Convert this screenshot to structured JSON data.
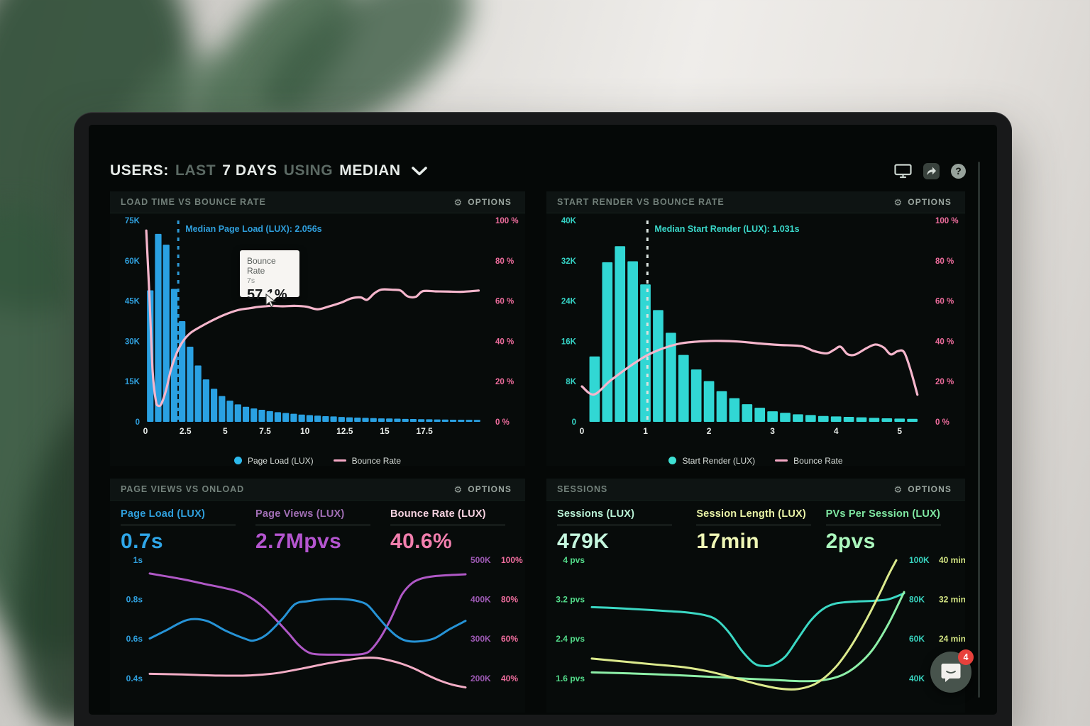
{
  "header": {
    "users": "USERS:",
    "last": "LAST",
    "days": "7 DAYS",
    "using": "USING",
    "median": "MEDIAN",
    "help_glyph": "?"
  },
  "chat": {
    "badge": "4"
  },
  "chart_data": [
    {
      "id": "load-time-vs-bounce-rate",
      "type": "bar+line",
      "title": "LOAD TIME VS BOUNCE RATE",
      "options_label": "OPTIONS",
      "annotation": "Median Page Load (LUX): 2.056s",
      "median_x": 2.056,
      "median_color": "#2e9ad6",
      "annotation_color": "#2f9fdc",
      "x_range": [
        0,
        21.5
      ],
      "x_tick_values": [
        0,
        2.5,
        5,
        7.5,
        10,
        12.5,
        15,
        17.5
      ],
      "x_ticks": [
        "0",
        "2.5",
        "5",
        "7.5",
        "10",
        "12.5",
        "15",
        "17.5"
      ],
      "left_axis": {
        "color": "#2f9fdc",
        "ticks": [
          "75K",
          "60K",
          "45K",
          "30K",
          "15K",
          "0"
        ]
      },
      "right_axis": {
        "color": "#ee6d9d",
        "ticks": [
          "100 %",
          "80 %",
          "60 %",
          "40 %",
          "20 %",
          "0 %"
        ]
      },
      "bars": {
        "name": "Page Load (LUX)",
        "color": "#2aa1e2",
        "range": [
          0,
          75
        ],
        "x_start": 0.3,
        "x_step": 0.5,
        "values": [
          49,
          70,
          66,
          49.5,
          37.5,
          28,
          21,
          15.8,
          12.3,
          9.6,
          7.9,
          6.5,
          5.6,
          5,
          4.5,
          4,
          3.6,
          3.3,
          3,
          2.7,
          2.5,
          2.3,
          2.1,
          2,
          1.8,
          1.7,
          1.6,
          1.5,
          1.4,
          1.3,
          1.25,
          1.2,
          1.1,
          1.05,
          1,
          0.95,
          0.9,
          0.85,
          0.8,
          0.78,
          0.75,
          0.72
        ]
      },
      "line": {
        "name": "Bounce Rate",
        "color": "#f5b6cc",
        "range": [
          0,
          100
        ],
        "points": [
          [
            0.05,
            95
          ],
          [
            0.25,
            62
          ],
          [
            0.45,
            25
          ],
          [
            0.65,
            10.5
          ],
          [
            0.8,
            8
          ],
          [
            1,
            9
          ],
          [
            1.3,
            16
          ],
          [
            1.6,
            26
          ],
          [
            1.95,
            34
          ],
          [
            2.35,
            40
          ],
          [
            2.8,
            44
          ],
          [
            3.4,
            47
          ],
          [
            4.1,
            50
          ],
          [
            4.9,
            53
          ],
          [
            5.8,
            55.5
          ],
          [
            6.6,
            56.5
          ],
          [
            7.1,
            57.1
          ],
          [
            7.9,
            57.6
          ],
          [
            8.6,
            57.4
          ],
          [
            9.4,
            57.6
          ],
          [
            10.1,
            57.2
          ],
          [
            10.8,
            55.9
          ],
          [
            11.5,
            57.3
          ],
          [
            12.3,
            59.3
          ],
          [
            12.9,
            61.3
          ],
          [
            13.5,
            61.8
          ],
          [
            13.9,
            60.6
          ],
          [
            14.35,
            63.8
          ],
          [
            14.8,
            65.7
          ],
          [
            15.5,
            65.6
          ],
          [
            16,
            65.2
          ],
          [
            16.45,
            62.3
          ],
          [
            16.95,
            62.1
          ],
          [
            17.4,
            64.9
          ],
          [
            18.2,
            64.8
          ],
          [
            19,
            64.7
          ],
          [
            19.9,
            64.6
          ],
          [
            20.9,
            65.2
          ]
        ]
      },
      "legend": [
        {
          "swatch": "dot",
          "color": "#2cb9ec",
          "label": "Page Load (LUX)"
        },
        {
          "swatch": "line",
          "color": "#f5a8c5",
          "label": "Bounce Rate"
        }
      ],
      "tooltip": {
        "title": "Bounce Rate",
        "subtitle": "7s",
        "value": "57.1%"
      }
    },
    {
      "id": "start-render-vs-bounce-rate",
      "type": "bar+line",
      "title": "START RENDER VS BOUNCE RATE",
      "options_label": "OPTIONS",
      "annotation": "Median Start Render (LUX): 1.031s",
      "median_x": 1.031,
      "median_color": "#d9e3df",
      "annotation_color": "#3ad9cb",
      "x_range": [
        0,
        5.45
      ],
      "x_tick_values": [
        0,
        1,
        2,
        3,
        4,
        5
      ],
      "x_ticks": [
        "0",
        "1",
        "2",
        "3",
        "4",
        "5"
      ],
      "left_axis": {
        "color": "#35d3c5",
        "ticks": [
          "40K",
          "32K",
          "24K",
          "16K",
          "8K",
          "0"
        ]
      },
      "right_axis": {
        "color": "#ee6d9d",
        "ticks": [
          "100 %",
          "80 %",
          "60 %",
          "40 %",
          "20 %",
          "0 %"
        ]
      },
      "bars": {
        "name": "Start Render (LUX)",
        "color": "#31d7d4",
        "range": [
          0,
          40
        ],
        "x_start": 0.2,
        "x_step": 0.2,
        "values": [
          13,
          31.7,
          34.9,
          31.9,
          27.3,
          22.2,
          17.7,
          13.3,
          10.4,
          8.1,
          6.1,
          4.7,
          3.5,
          2.8,
          2.1,
          1.8,
          1.5,
          1.35,
          1.17,
          1.07,
          0.98,
          0.89,
          0.79,
          0.7,
          0.65,
          0.6
        ]
      },
      "line": {
        "name": "Bounce Rate",
        "color": "#f5b6cc",
        "range": [
          0,
          100
        ],
        "points": [
          [
            0,
            17.6
          ],
          [
            0.19,
            13.6
          ],
          [
            0.45,
            20.5
          ],
          [
            0.82,
            29
          ],
          [
            1.12,
            34.5
          ],
          [
            1.5,
            38.6
          ],
          [
            1.8,
            39.8
          ],
          [
            2.1,
            40.2
          ],
          [
            2.45,
            39.9
          ],
          [
            2.8,
            38.9
          ],
          [
            3.1,
            38.2
          ],
          [
            3.45,
            37.6
          ],
          [
            3.65,
            35.2
          ],
          [
            3.85,
            34
          ],
          [
            3.97,
            35.8
          ],
          [
            4.07,
            37.3
          ],
          [
            4.18,
            33.6
          ],
          [
            4.3,
            33.4
          ],
          [
            4.48,
            36.6
          ],
          [
            4.62,
            38.4
          ],
          [
            4.75,
            36.9
          ],
          [
            4.86,
            33.5
          ],
          [
            4.97,
            35.1
          ],
          [
            5.07,
            34.6
          ],
          [
            5.17,
            26
          ],
          [
            5.28,
            13.5
          ]
        ]
      },
      "legend": [
        {
          "swatch": "dot",
          "color": "#3ee0d4",
          "label": "Start Render (LUX)"
        },
        {
          "swatch": "line",
          "color": "#f5a8c5",
          "label": "Bounce Rate"
        }
      ]
    },
    {
      "id": "page-views-vs-onload",
      "type": "multi-line",
      "title": "PAGE VIEWS VS ONLOAD",
      "options_label": "OPTIONS",
      "metrics": [
        {
          "label": "Page Load (LUX)",
          "value": "0.7s",
          "label_color": "#2f9fdc",
          "value_color": "#2fa6e8"
        },
        {
          "label": "Page Views (LUX)",
          "value": "2.7Mpvs",
          "label_color": "#a06eb4",
          "value_color": "#b455cf"
        },
        {
          "label": "Bounce Rate (LUX)",
          "value": "40.6%",
          "label_color": "#f6d2e0",
          "value_color": "#f27fae"
        }
      ],
      "row_fractions": [
        0.03,
        0.32,
        0.61,
        0.9
      ],
      "left_ticks": {
        "color": "#2f9fdc",
        "labels": [
          "1s",
          "0.8s",
          "0.6s",
          "0.4s"
        ]
      },
      "right_tick_cols": [
        {
          "color": "#9c59b3",
          "labels": [
            "500K",
            "400K",
            "300K",
            "200K"
          ]
        },
        {
          "color": "#ee6d9d",
          "labels": [
            "100%",
            "80%",
            "60%",
            "40%"
          ]
        }
      ],
      "series": [
        {
          "name": "Bounce Rate (LUX)",
          "color": "#f3adc6",
          "range": [
            33,
            102
          ],
          "points": [
            [
              0,
              42.2
            ],
            [
              0.1,
              41.9
            ],
            [
              0.22,
              41.3
            ],
            [
              0.32,
              41.4
            ],
            [
              0.4,
              42.5
            ],
            [
              0.48,
              44.8
            ],
            [
              0.56,
              47.4
            ],
            [
              0.63,
              49.3
            ],
            [
              0.68,
              50.3
            ],
            [
              0.72,
              50.2
            ],
            [
              0.76,
              49
            ],
            [
              0.8,
              47.2
            ],
            [
              0.84,
              44.7
            ],
            [
              0.88,
              41.5
            ],
            [
              0.92,
              38.7
            ],
            [
              0.96,
              36.6
            ],
            [
              1,
              35.3
            ]
          ]
        },
        {
          "name": "Page Views (LUX)",
          "color": "#af58c6",
          "range": [
            164,
            511
          ],
          "points": [
            [
              0,
              466
            ],
            [
              0.1,
              452
            ],
            [
              0.17,
              440
            ],
            [
              0.23,
              430
            ],
            [
              0.28,
              420
            ],
            [
              0.32,
              404
            ],
            [
              0.36,
              380
            ],
            [
              0.4,
              348
            ],
            [
              0.44,
              313
            ],
            [
              0.47,
              285
            ],
            [
              0.5,
              266
            ],
            [
              0.53,
              260
            ],
            [
              0.6,
              259
            ],
            [
              0.65,
              259
            ],
            [
              0.68,
              262
            ],
            [
              0.7,
              271
            ],
            [
              0.73,
              302
            ],
            [
              0.76,
              345
            ],
            [
              0.78,
              380
            ],
            [
              0.8,
              414
            ],
            [
              0.83,
              441
            ],
            [
              0.86,
              453
            ],
            [
              0.9,
              459
            ],
            [
              0.95,
              462
            ],
            [
              1,
              464
            ]
          ]
        },
        {
          "name": "Page Load (LUX)",
          "color": "#2693d6",
          "range": [
            0.328,
            1.021
          ],
          "points": [
            [
              0,
              0.6
            ],
            [
              0.05,
              0.64
            ],
            [
              0.12,
              0.695
            ],
            [
              0.18,
              0.69
            ],
            [
              0.24,
              0.64
            ],
            [
              0.3,
              0.6
            ],
            [
              0.33,
              0.59
            ],
            [
              0.37,
              0.62
            ],
            [
              0.42,
              0.7
            ],
            [
              0.46,
              0.775
            ],
            [
              0.5,
              0.79
            ],
            [
              0.55,
              0.8
            ],
            [
              0.62,
              0.8
            ],
            [
              0.66,
              0.79
            ],
            [
              0.69,
              0.77
            ],
            [
              0.72,
              0.715
            ],
            [
              0.75,
              0.66
            ],
            [
              0.78,
              0.615
            ],
            [
              0.81,
              0.59
            ],
            [
              0.85,
              0.585
            ],
            [
              0.9,
              0.6
            ],
            [
              0.95,
              0.648
            ],
            [
              1,
              0.69
            ]
          ]
        }
      ]
    },
    {
      "id": "sessions",
      "type": "multi-line",
      "title": "SESSIONS",
      "options_label": "OPTIONS",
      "metrics": [
        {
          "label": "Sessions (LUX)",
          "value": "479K",
          "label_color": "#b9f2d6",
          "value_color": "#c4f6de"
        },
        {
          "label": "Session Length (LUX)",
          "value": "17min",
          "label_color": "#e9f3a7",
          "value_color": "#eff7b6"
        },
        {
          "label": "PVs Per Session (LUX)",
          "value": "2pvs",
          "label_color": "#7fe8a2",
          "value_color": "#abf7bd"
        }
      ],
      "row_fractions": [
        0.03,
        0.32,
        0.61,
        0.9
      ],
      "left_ticks": {
        "color": "#54dd8b",
        "labels": [
          "4 pvs",
          "3.2 pvs",
          "2.4 pvs",
          "1.6 pvs"
        ]
      },
      "right_tick_cols": [
        {
          "color": "#38d3be",
          "labels": [
            "100K",
            "80K",
            "60K",
            "40K"
          ]
        },
        {
          "color": "#d3e583",
          "labels": [
            "40 min",
            "32 min",
            "24 min"
          ]
        }
      ],
      "series": [
        {
          "name": "Sessions (LUX)",
          "color": "#3bd8c4",
          "range": [
            33,
            102
          ],
          "points": [
            [
              0,
              76
            ],
            [
              0.08,
              75.5
            ],
            [
              0.16,
              74.8
            ],
            [
              0.24,
              74
            ],
            [
              0.3,
              73.4
            ],
            [
              0.36,
              72
            ],
            [
              0.4,
              69.5
            ],
            [
              0.44,
              63
            ],
            [
              0.48,
              54
            ],
            [
              0.52,
              47.5
            ],
            [
              0.55,
              46.2
            ],
            [
              0.58,
              46.8
            ],
            [
              0.62,
              51
            ],
            [
              0.66,
              60
            ],
            [
              0.7,
              69
            ],
            [
              0.74,
              75
            ],
            [
              0.78,
              77.8
            ],
            [
              0.84,
              78.8
            ],
            [
              0.9,
              79.2
            ],
            [
              0.95,
              80
            ],
            [
              1,
              83
            ]
          ]
        },
        {
          "name": "PVs Per Session (LUX)",
          "color": "#8df0a8",
          "range": [
            1.31,
            4.09
          ],
          "points": [
            [
              0,
              1.71
            ],
            [
              0.12,
              1.69
            ],
            [
              0.25,
              1.66
            ],
            [
              0.38,
              1.62
            ],
            [
              0.5,
              1.58
            ],
            [
              0.6,
              1.55
            ],
            [
              0.68,
              1.53
            ],
            [
              0.74,
              1.55
            ],
            [
              0.8,
              1.65
            ],
            [
              0.85,
              1.85
            ],
            [
              0.9,
              2.18
            ],
            [
              0.95,
              2.7
            ],
            [
              1,
              3.35
            ]
          ]
        },
        {
          "name": "Session Length (LUX)",
          "color": "#dcea8d",
          "range": [
            13.2,
            40.9
          ],
          "points": [
            [
              0,
              20
            ],
            [
              0.1,
              19.4
            ],
            [
              0.2,
              18.8
            ],
            [
              0.3,
              18.2
            ],
            [
              0.38,
              17.3
            ],
            [
              0.46,
              16
            ],
            [
              0.53,
              14.8
            ],
            [
              0.6,
              13.9
            ],
            [
              0.66,
              13.8
            ],
            [
              0.72,
              15
            ],
            [
              0.78,
              18.2
            ],
            [
              0.83,
              22.5
            ],
            [
              0.88,
              28
            ],
            [
              0.92,
              33
            ],
            [
              0.95,
              37
            ],
            [
              0.975,
              40
            ]
          ]
        }
      ]
    }
  ]
}
